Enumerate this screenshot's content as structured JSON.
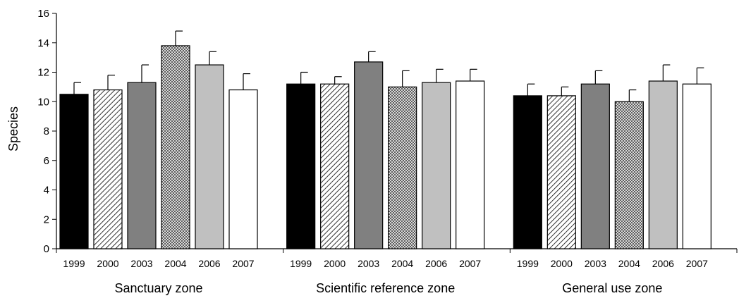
{
  "chart_data": {
    "type": "bar",
    "ylabel": "Species",
    "ylim": [
      0,
      16
    ],
    "yticks": [
      0,
      2,
      4,
      6,
      8,
      10,
      12,
      14,
      16
    ],
    "grid": false,
    "legend": "none",
    "categories": [
      "1999",
      "2000",
      "2003",
      "2004",
      "2006",
      "2007"
    ],
    "category_styles": [
      {
        "fill": "#000000",
        "pattern": "solid"
      },
      {
        "fill": "#ffffff",
        "pattern": "diagonal-hatch"
      },
      {
        "fill": "#808080",
        "pattern": "solid"
      },
      {
        "fill": "#b0b0b0",
        "pattern": "crosshatch"
      },
      {
        "fill": "#c0c0c0",
        "pattern": "solid"
      },
      {
        "fill": "#ffffff",
        "pattern": "solid"
      }
    ],
    "groups": [
      {
        "name": "Sanctuary zone",
        "values": [
          10.5,
          10.8,
          11.3,
          13.8,
          12.5,
          10.8
        ],
        "errors": [
          0.8,
          1.0,
          1.2,
          1.0,
          0.9,
          1.1
        ]
      },
      {
        "name": "Scientific reference zone",
        "values": [
          11.2,
          11.2,
          12.7,
          11.0,
          11.3,
          11.4
        ],
        "errors": [
          0.8,
          0.5,
          0.7,
          1.1,
          0.9,
          0.8
        ]
      },
      {
        "name": "General use zone",
        "values": [
          10.4,
          10.4,
          11.2,
          10.0,
          11.4,
          11.2
        ],
        "errors": [
          0.8,
          0.6,
          0.9,
          0.8,
          1.1,
          1.1
        ]
      }
    ]
  }
}
